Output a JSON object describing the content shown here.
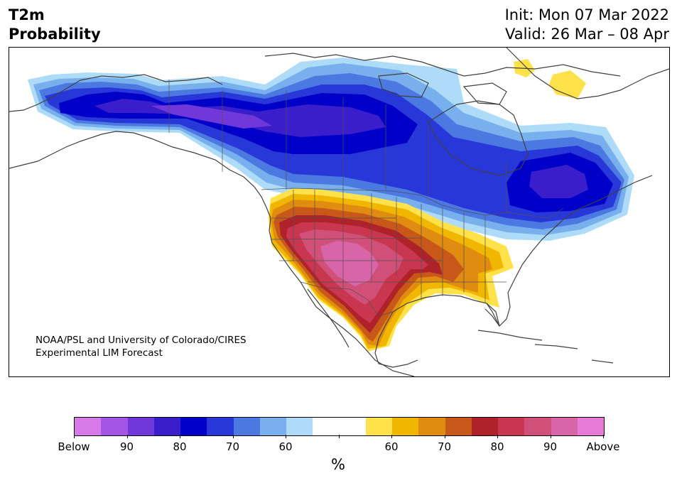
{
  "header": {
    "title_line1": "T2m",
    "title_line2": "Probability",
    "init": "Init: Mon 07 Mar 2022",
    "valid": "Valid: 26 Mar – 08 Apr"
  },
  "map": {
    "credit_line1": "NOAA/PSL and University of Colorado/CIRES",
    "credit_line2": "Experimental LIM Forecast",
    "regions": [
      {
        "name": "Alaska / western Canada",
        "category": "below",
        "peak_percent": 90
      },
      {
        "name": "central and eastern Canada",
        "category": "below",
        "peak_percent": 85
      },
      {
        "name": "Quebec / Labrador",
        "category": "below",
        "peak_percent": 85
      },
      {
        "name": "southwestern and south-central United States",
        "category": "above",
        "peak_percent": 95
      },
      {
        "name": "southeastern United States",
        "category": "above",
        "peak_percent": 65
      },
      {
        "name": "northern Mexico",
        "category": "above",
        "peak_percent": 90
      },
      {
        "name": "Greenland fringe",
        "category": "above",
        "peak_percent": 55
      }
    ]
  },
  "colorbar": {
    "colors": [
      "#d77ae8",
      "#a555e6",
      "#7038d8",
      "#3b1ecb",
      "#0000c8",
      "#2838d8",
      "#4c78e2",
      "#78b0ee",
      "#aedcf8",
      "#ffffff",
      "#ffffff",
      "#ffe24a",
      "#f0b600",
      "#e08c10",
      "#c8581a",
      "#b0222a",
      "#c83650",
      "#d0507a",
      "#d865a8",
      "#e87ad8"
    ],
    "tick_labels": [
      "Below",
      "90",
      "80",
      "70",
      "60",
      "",
      "60",
      "70",
      "80",
      "90",
      "Above"
    ],
    "unit": "%"
  }
}
